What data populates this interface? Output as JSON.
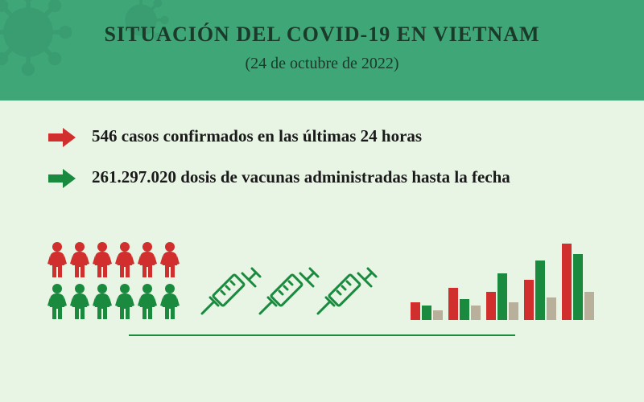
{
  "header": {
    "title": "SITUACIÓN DEL COVID-19 EN VIETNAM",
    "subtitle": "(24 de octubre de 2022)",
    "background_color": "#3fa678",
    "text_color": "#1a3a2a",
    "virus_deco_color": "#2a8560"
  },
  "body": {
    "background_color": "#e8f5e4"
  },
  "stats": [
    {
      "arrow_color": "#d12e2e",
      "text": "546 casos confirmados en las últimas 24 horas"
    },
    {
      "arrow_color": "#1a8a3f",
      "text": "261.297.020 dosis de vacunas administradas hasta la fecha"
    }
  ],
  "people_icons": {
    "top_row_color": "#d12e2e",
    "bottom_row_color": "#1a8a3f",
    "count_per_row": 6
  },
  "syringe_icons": {
    "color": "#1a8a3f",
    "count": 3
  },
  "bar_chart": {
    "groups": [
      {
        "bars": [
          {
            "h": 22,
            "c": "#d12e2e"
          },
          {
            "h": 18,
            "c": "#1a8a3f"
          },
          {
            "h": 12,
            "c": "#b8b09a"
          }
        ]
      },
      {
        "bars": [
          {
            "h": 40,
            "c": "#d12e2e"
          },
          {
            "h": 26,
            "c": "#1a8a3f"
          },
          {
            "h": 18,
            "c": "#b8b09a"
          }
        ]
      },
      {
        "bars": [
          {
            "h": 35,
            "c": "#d12e2e"
          },
          {
            "h": 58,
            "c": "#1a8a3f"
          },
          {
            "h": 22,
            "c": "#b8b09a"
          }
        ]
      },
      {
        "bars": [
          {
            "h": 50,
            "c": "#d12e2e"
          },
          {
            "h": 74,
            "c": "#1a8a3f"
          },
          {
            "h": 28,
            "c": "#b8b09a"
          }
        ]
      },
      {
        "bars": [
          {
            "h": 95,
            "c": "#d12e2e"
          },
          {
            "h": 82,
            "c": "#1a8a3f"
          },
          {
            "h": 35,
            "c": "#b8b09a"
          }
        ]
      }
    ]
  },
  "divider_color": "#1a8a3f"
}
